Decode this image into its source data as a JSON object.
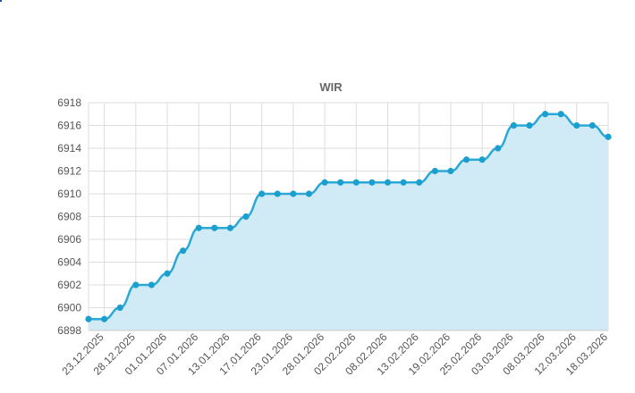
{
  "chart_data": {
    "type": "area",
    "title": "WIR",
    "xlabel": "",
    "ylabel": "",
    "ylim": [
      6898,
      6918
    ],
    "y_ticks": [
      6898,
      6900,
      6902,
      6904,
      6906,
      6908,
      6910,
      6912,
      6914,
      6916,
      6918
    ],
    "x_tick_labels": [
      "23.12.2025",
      "28.12.2025",
      "01.01.2026",
      "07.01.2026",
      "13.01.2026",
      "17.01.2026",
      "23.01.2026",
      "28.01.2026",
      "02.02.2026",
      "08.02.2026",
      "13.02.2026",
      "19.02.2026",
      "25.02.2026",
      "03.03.2026",
      "08.03.2026",
      "12.03.2026",
      "18.03.2026"
    ],
    "grid": true,
    "legend": "none",
    "colors": {
      "line": "#2ba8d6",
      "fill": "#cfeaf5",
      "grid": "#dddddd",
      "marker": "#1a9fcf"
    },
    "series": [
      {
        "values": [
          6899,
          6899,
          6900,
          6902,
          6902,
          6903,
          6905,
          6907,
          6907,
          6907,
          6908,
          6910,
          6910,
          6910,
          6910,
          6911,
          6911,
          6911,
          6911,
          6911,
          6911,
          6911,
          6912,
          6912,
          6913,
          6913,
          6914,
          6916,
          6916,
          6917,
          6917,
          6916,
          6916,
          6915
        ]
      }
    ]
  }
}
